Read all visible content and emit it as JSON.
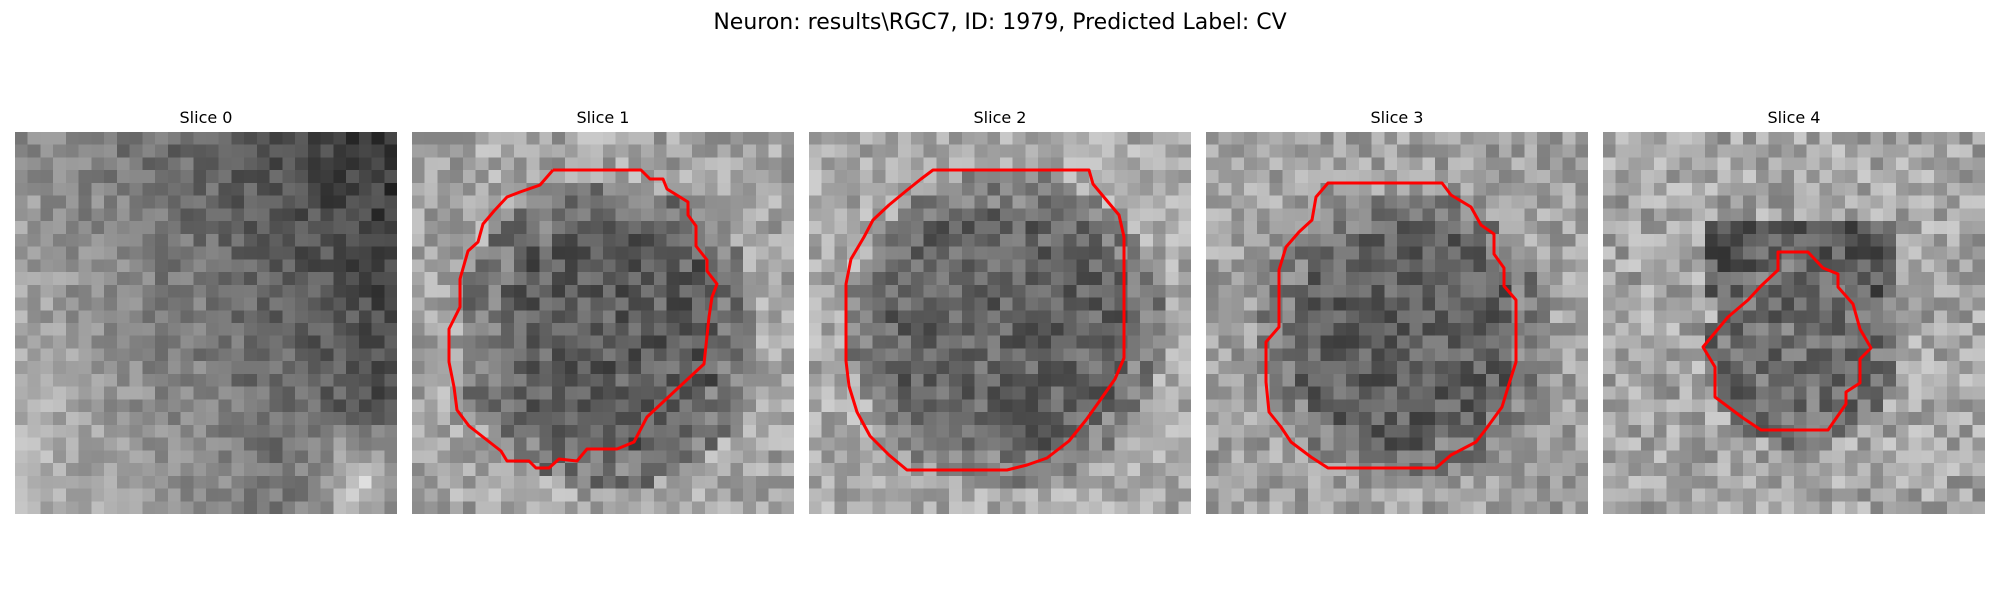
{
  "figure": {
    "title": "Neuron: results\\RGC7, ID: 1979, Predicted Label: CV"
  },
  "slices": [
    {
      "title": "Slice 0",
      "has_contour": false,
      "contour_color": "#ff0000"
    },
    {
      "title": "Slice 1",
      "has_contour": true,
      "contour_color": "#ff0000"
    },
    {
      "title": "Slice 2",
      "has_contour": true,
      "contour_color": "#ff0000"
    },
    {
      "title": "Slice 3",
      "has_contour": true,
      "contour_color": "#ff0000"
    },
    {
      "title": "Slice 4",
      "has_contour": true,
      "contour_color": "#ff0000"
    }
  ],
  "colormap": "gray"
}
